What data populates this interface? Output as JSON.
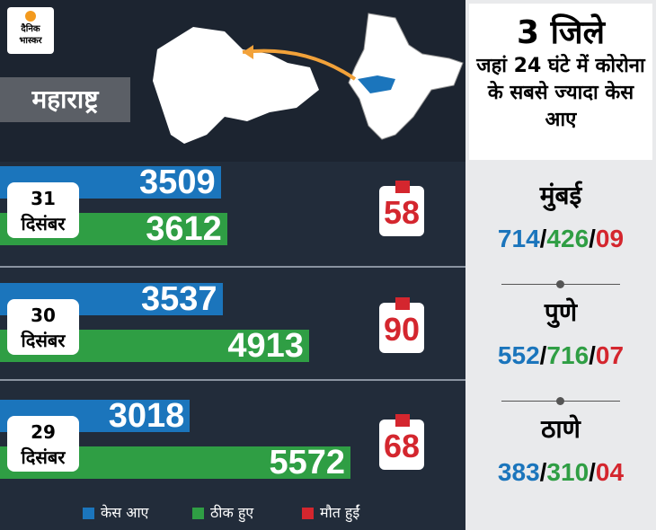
{
  "logo": "दैनिक भास्कर",
  "chart_data": {
    "type": "bar",
    "orientation": "horizontal",
    "title": "महाराष्ट्र",
    "categories": [
      "31 दिसंबर",
      "30 दिसंबर",
      "29 दिसंबर"
    ],
    "series": [
      {
        "name": "केस आए",
        "color": "#1b75bc",
        "values": [
          3509,
          3537,
          3018
        ]
      },
      {
        "name": "ठीक हुए",
        "color": "#2f9e44",
        "values": [
          3612,
          4913,
          5572
        ]
      },
      {
        "name": "मौत हुईं",
        "color": "#d4262e",
        "values": [
          58,
          90,
          68
        ]
      }
    ]
  },
  "districts_panel": {
    "title": "3 जिले",
    "subtitle": "जहां 24 घंटे में कोरोना के सबसे ज्यादा केस आए",
    "separator": "/",
    "districts": [
      {
        "name": "मुंबई",
        "cases": "714",
        "recovered": "426",
        "deaths": "09"
      },
      {
        "name": "पुणे",
        "cases": "552",
        "recovered": "716",
        "deaths": "07"
      },
      {
        "name": "ठाणे",
        "cases": "383",
        "recovered": "310",
        "deaths": "04"
      }
    ]
  }
}
